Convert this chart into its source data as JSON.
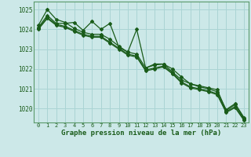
{
  "title": "Graphe pression niveau de la mer (hPa)",
  "background_color": "#cce8e8",
  "grid_color": "#aad4d4",
  "line_color": "#1a5c1a",
  "text_color": "#1a5c1a",
  "spine_color": "#5a9a6a",
  "xlim": [
    -0.5,
    23.5
  ],
  "ylim": [
    1019.3,
    1025.4
  ],
  "yticks": [
    1020,
    1021,
    1022,
    1023,
    1024,
    1025
  ],
  "xticks": [
    0,
    1,
    2,
    3,
    4,
    5,
    6,
    7,
    8,
    9,
    10,
    11,
    12,
    13,
    14,
    15,
    16,
    17,
    18,
    19,
    20,
    21,
    22,
    23
  ],
  "series": [
    [
      1024.2,
      1025.0,
      1024.5,
      1024.35,
      1024.05,
      1023.85,
      1023.75,
      1023.75,
      1023.5,
      1023.15,
      1022.85,
      1022.75,
      1022.05,
      1022.25,
      1022.25,
      1021.85,
      1021.45,
      1021.25,
      1021.1,
      1021.0,
      1020.85,
      1019.95,
      1020.25,
      1019.55
    ],
    [
      1024.1,
      1024.7,
      1024.3,
      1024.3,
      1024.35,
      1023.95,
      1024.4,
      1024.0,
      1024.3,
      1023.1,
      1022.85,
      1024.0,
      1022.05,
      1022.2,
      1022.25,
      1022.0,
      1021.6,
      1021.25,
      1021.15,
      1021.05,
      1020.95,
      1019.9,
      1020.2,
      1019.5
    ],
    [
      1024.05,
      1024.6,
      1024.25,
      1024.15,
      1023.95,
      1023.75,
      1023.65,
      1023.65,
      1023.35,
      1023.05,
      1022.75,
      1022.65,
      1021.95,
      1022.05,
      1022.15,
      1021.8,
      1021.35,
      1021.1,
      1021.0,
      1020.9,
      1020.75,
      1019.85,
      1020.1,
      1019.45
    ],
    [
      1024.0,
      1024.55,
      1024.2,
      1024.1,
      1023.9,
      1023.7,
      1023.6,
      1023.6,
      1023.3,
      1023.0,
      1022.7,
      1022.6,
      1021.9,
      1022.0,
      1022.1,
      1021.75,
      1021.3,
      1021.05,
      1020.95,
      1020.85,
      1020.7,
      1019.8,
      1020.05,
      1019.4
    ]
  ],
  "xlabel_fontsize": 6.5,
  "ylabel_fontsize": 5.5,
  "tick_fontsize": 5.0
}
